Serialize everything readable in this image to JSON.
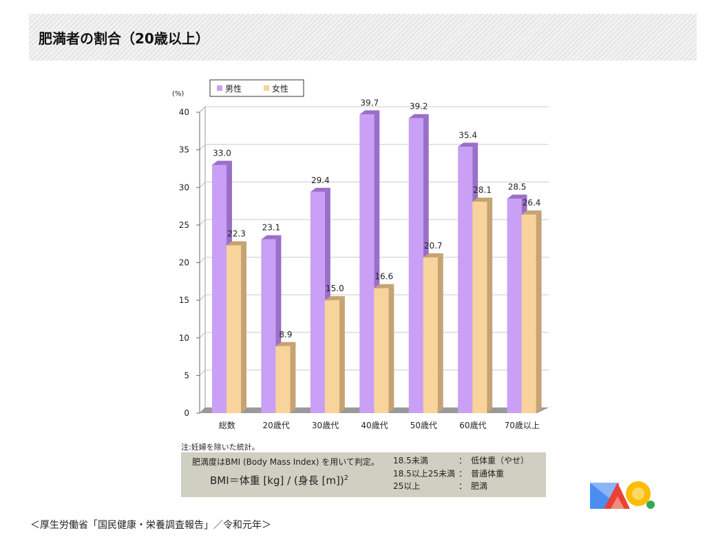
{
  "header": {
    "title": "肥満者の割合（20歳以上）"
  },
  "chart_data": {
    "type": "bar",
    "title": "肥満者の割合（20歳以上）",
    "ylabel": "(%)",
    "ylim": [
      0,
      40
    ],
    "yticks": [
      0,
      5,
      10,
      15,
      20,
      25,
      30,
      35,
      40
    ],
    "categories": [
      "総数",
      "20歳代",
      "30歳代",
      "40歳代",
      "50歳代",
      "60歳代",
      "70歳以上"
    ],
    "series": [
      {
        "name": "男性",
        "color": "#c9a0f5",
        "values": [
          33.0,
          23.1,
          29.4,
          39.7,
          39.2,
          35.4,
          28.5
        ]
      },
      {
        "name": "女性",
        "color": "#f8d39c",
        "values": [
          22.3,
          8.9,
          15.0,
          16.6,
          20.7,
          28.1,
          26.4
        ]
      }
    ],
    "legend": "top-left",
    "grid": true
  },
  "note": "注:妊婦を除いた統計。",
  "bmi": {
    "desc": "肥満度はBMI (Body Mass Index) を用いて判定。",
    "formula": "BMI＝体重 [kg] / (身長 [m])",
    "sup": "2",
    "rows": [
      {
        "range": "18.5未満",
        "label": "：　低体重（やせ）"
      },
      {
        "range": "18.5以上25未満",
        "label": "：　普通体重"
      },
      {
        "range": "25以上",
        "label": "：　肥満"
      }
    ]
  },
  "source": "＜厚生労働省「国民健康・栄養調査報告」／令和元年＞"
}
